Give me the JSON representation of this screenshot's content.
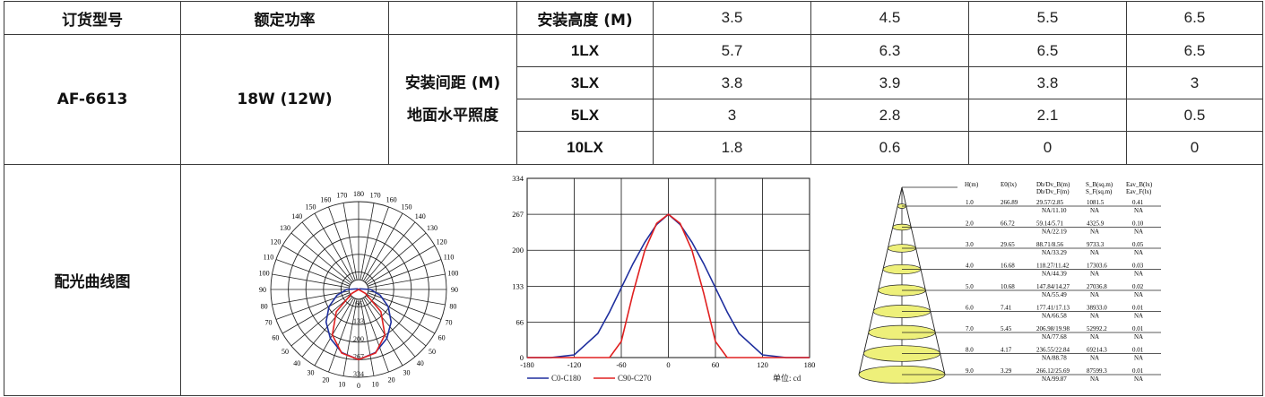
{
  "table": {
    "header": {
      "model_label": "订货型号",
      "power_label": "额定功率",
      "height_label": "安装高度 (M)",
      "heights": [
        "3.5",
        "4.5",
        "5.5",
        "6.5"
      ]
    },
    "model": "AF-6613",
    "power": "18W (12W)",
    "spacing_label_1": "安装间距 (M)",
    "spacing_label_2": "地面水平照度",
    "rows": [
      {
        "lx": "1LX",
        "values": [
          "5.7",
          "6.3",
          "6.5",
          "6.5"
        ]
      },
      {
        "lx": "3LX",
        "values": [
          "3.8",
          "3.9",
          "3.8",
          "3"
        ]
      },
      {
        "lx": "5LX",
        "values": [
          "3",
          "2.8",
          "2.1",
          "0.5"
        ]
      },
      {
        "lx": "10LX",
        "values": [
          "1.8",
          "0.6",
          "0",
          "0"
        ]
      }
    ],
    "curve_label": "配光曲线图"
  },
  "polar": {
    "angle_labels_left": [
      "180",
      "170",
      "160",
      "150",
      "140",
      "130",
      "120",
      "110",
      "100",
      "90",
      "80",
      "70",
      "60",
      "50",
      "40",
      "30",
      "20",
      "10",
      "0"
    ],
    "angle_labels_right": [
      "170",
      "160",
      "150",
      "140",
      "130",
      "120",
      "110",
      "100",
      "90",
      "80",
      "70",
      "60",
      "50",
      "40",
      "30",
      "20",
      "10"
    ],
    "radial_labels": [
      "66",
      "133",
      "200",
      "267",
      "334"
    ],
    "max_cd": 334
  },
  "chart_data": {
    "type": "line",
    "x": [
      -180,
      -150,
      -120,
      -90,
      -75,
      -60,
      -45,
      -30,
      -15,
      0,
      15,
      30,
      45,
      60,
      75,
      90,
      120,
      150,
      180
    ],
    "series": [
      {
        "name": "C0-C180",
        "color": "#1f2f9e",
        "values": [
          0,
          0,
          5,
          45,
          85,
          130,
          175,
          215,
          248,
          267,
          248,
          215,
          175,
          130,
          85,
          45,
          5,
          0,
          0
        ]
      },
      {
        "name": "C90-C270",
        "color": "#e02020",
        "values": [
          0,
          0,
          0,
          0,
          0,
          30,
          120,
          200,
          250,
          267,
          250,
          200,
          120,
          30,
          0,
          0,
          0,
          0,
          0
        ]
      }
    ],
    "xlim": [
      -180,
      180
    ],
    "ylim": [
      0,
      334
    ],
    "x_ticks": [
      "-180",
      "-120",
      "-60",
      "0",
      "60",
      "120",
      "180"
    ],
    "y_ticks": [
      "0",
      "66",
      "133",
      "200",
      "267",
      "334"
    ],
    "unit_label": "单位: cd",
    "grid": true,
    "legend": "bottom-left"
  },
  "illum": {
    "headers": {
      "h": "H(m)",
      "e0": "E0(lx)",
      "db_top": "Db/Dv_B(m)",
      "db_bot": "Db/Dv_F(m)",
      "s_top": "S_B(sq.m)",
      "s_bot": "S_F(sq.m)",
      "eav_top": "Eav_B(lx)",
      "eav_bot": "Eav_F(lx)"
    },
    "rows": [
      {
        "h": "1.0",
        "e0": "266.89",
        "db1": "29.57/2.85",
        "db2": "NA/11.10",
        "s1": "1081.5",
        "s2": "NA",
        "eav1": "0.41",
        "eav2": "NA"
      },
      {
        "h": "2.0",
        "e0": "66.72",
        "db1": "59.14/5.71",
        "db2": "NA/22.19",
        "s1": "4325.9",
        "s2": "NA",
        "eav1": "0.10",
        "eav2": "NA"
      },
      {
        "h": "3.0",
        "e0": "29.65",
        "db1": "88.71/8.56",
        "db2": "NA/33.29",
        "s1": "9733.3",
        "s2": "NA",
        "eav1": "0.05",
        "eav2": "NA"
      },
      {
        "h": "4.0",
        "e0": "16.68",
        "db1": "118.27/11.42",
        "db2": "NA/44.39",
        "s1": "17303.6",
        "s2": "NA",
        "eav1": "0.03",
        "eav2": "NA"
      },
      {
        "h": "5.0",
        "e0": "10.68",
        "db1": "147.84/14.27",
        "db2": "NA/55.49",
        "s1": "27036.8",
        "s2": "NA",
        "eav1": "0.02",
        "eav2": "NA"
      },
      {
        "h": "6.0",
        "e0": "7.41",
        "db1": "177.41/17.13",
        "db2": "NA/66.58",
        "s1": "38933.0",
        "s2": "NA",
        "eav1": "0.01",
        "eav2": "NA"
      },
      {
        "h": "7.0",
        "e0": "5.45",
        "db1": "206.98/19.98",
        "db2": "NA/77.68",
        "s1": "52992.2",
        "s2": "NA",
        "eav1": "0.01",
        "eav2": "NA"
      },
      {
        "h": "8.0",
        "e0": "4.17",
        "db1": "236.55/22.84",
        "db2": "NA/88.78",
        "s1": "69214.3",
        "s2": "NA",
        "eav1": "0.01",
        "eav2": "NA"
      },
      {
        "h": "9.0",
        "e0": "3.29",
        "db1": "266.12/25.69",
        "db2": "NA/99.87",
        "s1": "87599.3",
        "s2": "NA",
        "eav1": "0.01",
        "eav2": "NA"
      }
    ]
  }
}
